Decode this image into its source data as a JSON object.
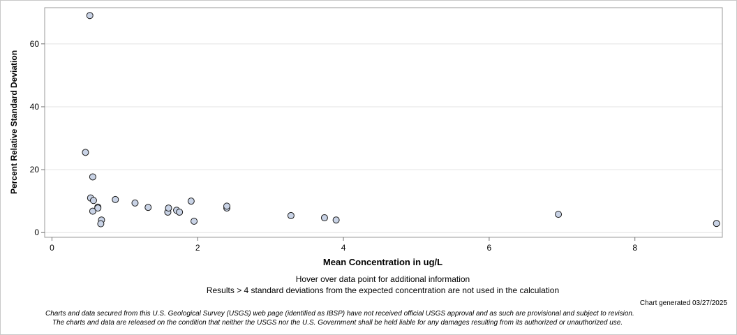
{
  "chart_data": {
    "type": "scatter",
    "xlabel": "Mean Concentration in ug/L",
    "ylabel": "Percent Relative Standard Deviation",
    "xlim": [
      -0.1,
      9.2
    ],
    "ylim": [
      -1.5,
      71.5
    ],
    "xticks": [
      0,
      2,
      4,
      6,
      8
    ],
    "yticks": [
      0,
      20,
      40,
      60
    ],
    "grid": "horizontal",
    "marker_fill": "#c9d3e6",
    "marker_stroke": "#1a1a1a",
    "points": [
      {
        "x": 0.52,
        "y": 69.0
      },
      {
        "x": 0.46,
        "y": 25.5
      },
      {
        "x": 0.56,
        "y": 17.7
      },
      {
        "x": 0.53,
        "y": 11.0
      },
      {
        "x": 0.57,
        "y": 10.2
      },
      {
        "x": 0.56,
        "y": 6.8
      },
      {
        "x": 0.63,
        "y": 8.1
      },
      {
        "x": 0.63,
        "y": 7.8
      },
      {
        "x": 0.68,
        "y": 4.0
      },
      {
        "x": 0.67,
        "y": 2.8
      },
      {
        "x": 0.87,
        "y": 10.5
      },
      {
        "x": 1.14,
        "y": 9.4
      },
      {
        "x": 1.32,
        "y": 8.0
      },
      {
        "x": 1.59,
        "y": 6.5
      },
      {
        "x": 1.6,
        "y": 7.8
      },
      {
        "x": 1.71,
        "y": 7.1
      },
      {
        "x": 1.75,
        "y": 6.5
      },
      {
        "x": 1.91,
        "y": 10.0
      },
      {
        "x": 1.95,
        "y": 3.6
      },
      {
        "x": 2.4,
        "y": 7.8
      },
      {
        "x": 2.4,
        "y": 8.4
      },
      {
        "x": 3.28,
        "y": 5.4
      },
      {
        "x": 3.74,
        "y": 4.7
      },
      {
        "x": 3.9,
        "y": 4.0
      },
      {
        "x": 6.95,
        "y": 5.8
      },
      {
        "x": 9.12,
        "y": 2.9
      }
    ]
  },
  "notes": {
    "hover": "Hover over data point for additional information",
    "results": "Results > 4 standard deviations from the expected concentration are not used in the calculation",
    "generated": "Chart generated 03/27/2025",
    "disclaimer1": "Charts and data secured from this U.S. Geological Survey (USGS) web page (identified as IBSP) have not received official USGS approval and as such are provisional and subject to revision.",
    "disclaimer2": "The charts and data are released on the condition that neither the USGS nor the U.S. Government shall be held liable for any damages resulting from its authorized or unauthorized use."
  }
}
